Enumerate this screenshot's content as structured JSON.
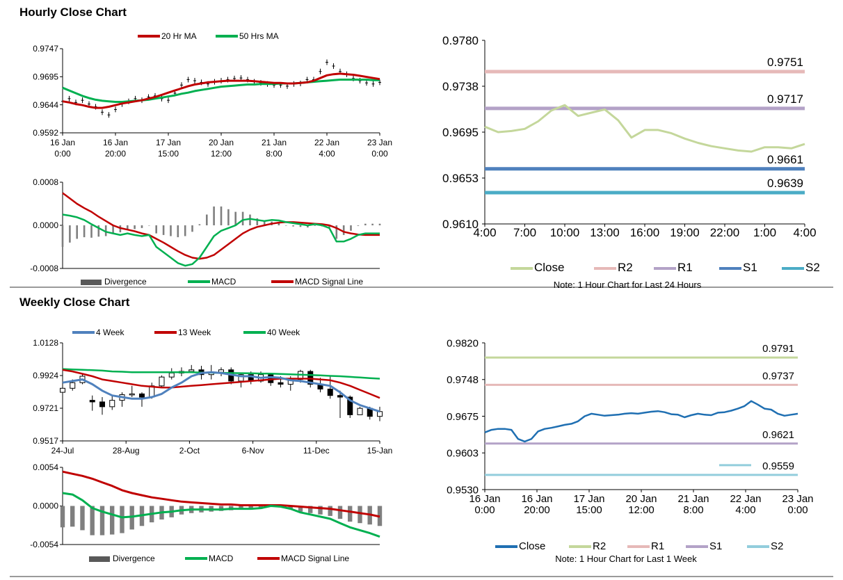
{
  "sections": {
    "hourly_title": "Hourly Close Chart",
    "weekly_title": "Weekly Close Chart"
  },
  "chart_data": [
    {
      "id": "hourly_price",
      "type": "line",
      "legend": [
        "20 Hr MA",
        "50 Hrs MA"
      ],
      "colors": {
        "ma20": "#c00000",
        "ma50": "#00b050",
        "price": "#000000"
      },
      "ylim": [
        0.9592,
        0.9747
      ],
      "yticks": [
        "0.9747",
        "0.9695",
        "0.9644",
        "0.9592"
      ],
      "xticks": [
        [
          "16 Jan",
          "0:00"
        ],
        [
          "16 Jan",
          "20:00"
        ],
        [
          "17 Jan",
          "15:00"
        ],
        [
          "20 Jan",
          "12:00"
        ],
        [
          "21 Jan",
          "8:00"
        ],
        [
          "22 Jan",
          "4:00"
        ],
        [
          "23 Jan",
          "0:00"
        ]
      ],
      "price": [
        0.965,
        0.9655,
        0.9648,
        0.9652,
        0.9645,
        0.964,
        0.963,
        0.9625,
        0.9635,
        0.9645,
        0.965,
        0.9655,
        0.9652,
        0.9658,
        0.966,
        0.9655,
        0.9652,
        0.9665,
        0.968,
        0.969,
        0.9688,
        0.9685,
        0.9682,
        0.9686,
        0.9688,
        0.969,
        0.9692,
        0.9693,
        0.969,
        0.9686,
        0.9684,
        0.9682,
        0.968,
        0.968,
        0.9678,
        0.9682,
        0.9683,
        0.969,
        0.969,
        0.9705,
        0.9722,
        0.9715,
        0.9705,
        0.97,
        0.9692,
        0.9688,
        0.9684,
        0.9682,
        0.9685
      ],
      "ma20": [
        0.965,
        0.9648,
        0.9645,
        0.9643,
        0.964,
        0.9638,
        0.9638,
        0.964,
        0.9643,
        0.9646,
        0.9648,
        0.965,
        0.9652,
        0.9655,
        0.9658,
        0.9662,
        0.9666,
        0.967,
        0.9674,
        0.9678,
        0.9681,
        0.9683,
        0.9685,
        0.9686,
        0.9687,
        0.9688,
        0.9688,
        0.9688,
        0.9688,
        0.9687,
        0.9686,
        0.9685,
        0.9684,
        0.9684,
        0.9683,
        0.9683,
        0.9684,
        0.9685,
        0.9688,
        0.9693,
        0.9698,
        0.97,
        0.9701,
        0.97,
        0.9699,
        0.9697,
        0.9695,
        0.9693,
        0.9691
      ],
      "ma50": [
        0.9675,
        0.967,
        0.9665,
        0.966,
        0.9656,
        0.9653,
        0.9651,
        0.965,
        0.9649,
        0.9649,
        0.965,
        0.9651,
        0.9652,
        0.9653,
        0.9655,
        0.9657,
        0.9659,
        0.9661,
        0.9664,
        0.9666,
        0.9669,
        0.9671,
        0.9673,
        0.9675,
        0.9677,
        0.9678,
        0.9679,
        0.968,
        0.9681,
        0.9681,
        0.9682,
        0.9682,
        0.9682,
        0.9683,
        0.9683,
        0.9683,
        0.9684,
        0.9685,
        0.9686,
        0.9687,
        0.9688,
        0.9689,
        0.969,
        0.969,
        0.969,
        0.969,
        0.969,
        0.9689,
        0.9689
      ]
    },
    {
      "id": "hourly_macd",
      "type": "line",
      "legend": [
        "Divergence",
        "MACD",
        "MACD Signal Line"
      ],
      "colors": {
        "div": "#595959",
        "macd": "#00b050",
        "signal": "#c00000"
      },
      "ylim": [
        -0.0008,
        0.0008
      ],
      "yticks": [
        "0.0008",
        "0.0000",
        "-0.0008"
      ],
      "macd": [
        0.0002,
        0.00018,
        0.00015,
        0.0001,
        2e-05,
        -5e-05,
        -0.00012,
        -0.00015,
        -0.00018,
        -0.00015,
        -0.00018,
        -0.0002,
        -0.00018,
        -0.0004,
        -0.0005,
        -0.0006,
        -0.0007,
        -0.00075,
        -0.00072,
        -0.0006,
        -0.0004,
        -0.0002,
        -0.0001,
        -5e-05,
        0.0,
        0.0001,
        0.00012,
        0.0001,
        8e-05,
        0.0001,
        9e-05,
        6e-05,
        4e-05,
        2e-05,
        0.0,
        2e-05,
        0.0,
        -5e-05,
        -0.0003,
        -0.0003,
        -0.00025,
        -0.00018,
        -0.00015,
        -0.00015,
        -0.00015
      ],
      "signal": [
        0.0006,
        0.0005,
        0.0004,
        0.00032,
        0.00025,
        0.00016,
        8e-05,
        0.0,
        -5e-05,
        -8e-05,
        -0.00011,
        -0.00015,
        -0.00018,
        -0.00025,
        -0.00032,
        -0.0004,
        -0.00048,
        -0.00055,
        -0.0006,
        -0.00062,
        -0.0006,
        -0.00055,
        -0.00045,
        -0.00035,
        -0.00025,
        -0.00015,
        -8e-05,
        -3e-05,
        0.0,
        3e-05,
        5e-05,
        6e-05,
        6e-05,
        5e-05,
        4e-05,
        3e-05,
        2e-05,
        0.0,
        -5e-05,
        -0.00012,
        -0.00015,
        -0.00017,
        -0.00018,
        -0.00018,
        -0.00018
      ],
      "div": [
        -0.0004,
        -0.00032,
        -0.00025,
        -0.00022,
        -0.00023,
        -0.00021,
        -0.0002,
        -0.00015,
        -0.00013,
        -7e-05,
        -7e-05,
        -5e-05,
        0.0,
        -0.00015,
        -0.00018,
        -0.0002,
        -0.00022,
        -0.0002,
        -0.00012,
        2e-05,
        0.0002,
        0.00035,
        0.00035,
        0.0003,
        0.00025,
        0.00025,
        0.0002,
        0.00013,
        8e-05,
        7e-05,
        4e-05,
        0.0,
        -2e-05,
        -3e-05,
        -4e-05,
        -1e-05,
        -2e-05,
        -5e-05,
        -0.00025,
        -0.00018,
        -0.0001,
        -1e-05,
        3e-05,
        3e-05,
        3e-05
      ]
    },
    {
      "id": "hourly_levels",
      "type": "line",
      "legend": [
        "Close",
        "R2",
        "R1",
        "S1",
        "S2"
      ],
      "colors": {
        "close": "#c4d79b",
        "r2": "#e6b9b8",
        "r1": "#b3a2c7",
        "s1": "#4f81bd",
        "s2": "#4bacc6"
      },
      "note": "Note: 1 Hour Chart for Last 24 Hours",
      "ylim": [
        0.961,
        0.978
      ],
      "yticks": [
        "0.9780",
        "0.9738",
        "0.9695",
        "0.9653",
        "0.9610"
      ],
      "xticks": [
        "4:00",
        "7:00",
        "10:00",
        "13:00",
        "16:00",
        "19:00",
        "22:00",
        "1:00",
        "4:00"
      ],
      "close": [
        0.97,
        0.9695,
        0.9696,
        0.9698,
        0.9705,
        0.9715,
        0.972,
        0.971,
        0.9713,
        0.9716,
        0.9706,
        0.969,
        0.9697,
        0.9697,
        0.9694,
        0.9689,
        0.9685,
        0.9682,
        0.968,
        0.9678,
        0.9677,
        0.9681,
        0.9681,
        0.968,
        0.9684
      ],
      "levels": {
        "r2": 0.9751,
        "r1": 0.9717,
        "s1": 0.9661,
        "s2": 0.9639
      },
      "level_labels": {
        "r2": "0.9751",
        "r1": "0.9717",
        "s1": "0.9661",
        "s2": "0.9639"
      }
    },
    {
      "id": "weekly_price",
      "type": "line",
      "legend": [
        "4 Week",
        "13 Week",
        "40 Week"
      ],
      "colors": {
        "w4": "#4f81bd",
        "w13": "#c00000",
        "w40": "#00b050",
        "candle": "#000000"
      },
      "ylim": [
        0.9517,
        1.0128
      ],
      "yticks": [
        "1.0128",
        "0.9924",
        "0.9721",
        "0.9517"
      ],
      "xticks": [
        "24-Jul",
        "28-Aug",
        "2-Oct",
        "6-Nov",
        "11-Dec",
        "15-Jan"
      ],
      "candles": [
        [
          0.982,
          0.9845,
          0.9855,
          0.979
        ],
        [
          0.9845,
          0.988,
          0.99,
          0.983
        ],
        [
          0.988,
          0.992,
          0.9935,
          0.987
        ],
        [
          0.977,
          0.976,
          0.98,
          0.9705
        ],
        [
          0.976,
          0.973,
          0.979,
          0.968
        ],
        [
          0.973,
          0.977,
          0.98,
          0.971
        ],
        [
          0.977,
          0.9805,
          0.982,
          0.973
        ],
        [
          0.9805,
          0.981,
          0.986,
          0.979
        ],
        [
          0.981,
          0.979,
          0.982,
          0.973
        ],
        [
          0.979,
          0.986,
          0.988,
          0.978
        ],
        [
          0.986,
          0.9915,
          0.9925,
          0.985
        ],
        [
          0.9915,
          0.994,
          0.997,
          0.99
        ],
        [
          0.994,
          0.995,
          0.9975,
          0.992
        ],
        [
          0.995,
          0.996,
          0.999,
          0.994
        ],
        [
          0.996,
          0.993,
          0.9985,
          0.99
        ],
        [
          0.993,
          0.9945,
          0.999,
          0.99
        ],
        [
          0.9945,
          0.996,
          0.9975,
          0.992
        ],
        [
          0.996,
          0.989,
          0.9975,
          0.987
        ],
        [
          0.989,
          0.993,
          0.994,
          0.985
        ],
        [
          0.993,
          0.989,
          0.995,
          0.987
        ],
        [
          0.989,
          0.993,
          0.995,
          0.988
        ],
        [
          0.993,
          0.988,
          0.994,
          0.986
        ],
        [
          0.988,
          0.987,
          0.992,
          0.985
        ],
        [
          0.987,
          0.99,
          0.992,
          0.983
        ],
        [
          0.99,
          0.995,
          0.996,
          0.988
        ],
        [
          0.995,
          0.987,
          0.996,
          0.985
        ],
        [
          0.987,
          0.984,
          0.991,
          0.982
        ],
        [
          0.984,
          0.98,
          0.992,
          0.978
        ],
        [
          0.98,
          0.979,
          0.983,
          0.966
        ],
        [
          0.979,
          0.968,
          0.98,
          0.966
        ],
        [
          0.968,
          0.972,
          0.973,
          0.969
        ],
        [
          0.972,
          0.967,
          0.973,
          0.965
        ],
        [
          0.967,
          0.97,
          0.973,
          0.964
        ]
      ],
      "w4": [
        0.988,
        0.989,
        0.99,
        0.987,
        0.983,
        0.98,
        0.979,
        0.978,
        0.978,
        0.979,
        0.981,
        0.985,
        0.988,
        0.992,
        0.994,
        0.9945,
        0.994,
        0.993,
        0.992,
        0.992,
        0.991,
        0.9915,
        0.991,
        0.9895,
        0.989,
        0.988,
        0.987,
        0.986,
        0.982,
        0.977,
        0.974,
        0.972,
        0.97
      ],
      "w13": [
        0.996,
        0.995,
        0.9935,
        0.992,
        0.99,
        0.989,
        0.988,
        0.987,
        0.986,
        0.9855,
        0.985,
        0.985,
        0.9855,
        0.986,
        0.9865,
        0.987,
        0.9875,
        0.988,
        0.9885,
        0.989,
        0.9895,
        0.99,
        0.9905,
        0.9905,
        0.9905,
        0.9905,
        0.99,
        0.9895,
        0.988,
        0.986,
        0.9835,
        0.981,
        0.9785
      ],
      "w40": [
        0.9965,
        0.9962,
        0.996,
        0.9958,
        0.9955,
        0.995,
        0.9948,
        0.9945,
        0.9945,
        0.9945,
        0.9945,
        0.9945,
        0.9945,
        0.9945,
        0.9943,
        0.9942,
        0.9941,
        0.994,
        0.9939,
        0.9938,
        0.9937,
        0.9936,
        0.9934,
        0.9932,
        0.993,
        0.9928,
        0.9925,
        0.9922,
        0.992,
        0.9916,
        0.9912,
        0.9908,
        0.9905
      ]
    },
    {
      "id": "weekly_macd",
      "type": "line",
      "legend": [
        "Divergence",
        "MACD",
        "MACD Signal Line"
      ],
      "colors": {
        "div": "#595959",
        "macd": "#00b050",
        "signal": "#c00000"
      },
      "ylim": [
        -0.0054,
        0.0054
      ],
      "yticks": [
        "0.0054",
        "0.0000",
        "-0.0054"
      ],
      "macd": [
        0.0018,
        0.0016,
        0.0008,
        -0.0003,
        -0.0008,
        -0.0012,
        -0.0016,
        -0.0015,
        -0.0013,
        -0.0011,
        -0.0009,
        -0.0008,
        -0.0006,
        -0.0005,
        -0.0005,
        -0.0005,
        -0.0005,
        -0.0004,
        -0.0004,
        -0.0004,
        -0.0003,
        0.0,
        -0.0001,
        -0.0004,
        -0.0009,
        -0.0012,
        -0.0015,
        -0.0018,
        -0.0024,
        -0.003,
        -0.0034,
        -0.0038,
        -0.0043
      ],
      "signal": [
        0.0048,
        0.0045,
        0.0042,
        0.0038,
        0.0033,
        0.0028,
        0.0022,
        0.0018,
        0.0015,
        0.0012,
        0.001,
        0.0008,
        0.0006,
        0.0005,
        0.0004,
        0.0003,
        0.0002,
        0.0002,
        0.0001,
        0.0001,
        0.0001,
        0.0001,
        0.0001,
        0.0,
        -0.0001,
        -0.0002,
        -0.0003,
        -0.0004,
        -0.0006,
        -0.0008,
        -0.001,
        -0.0012,
        -0.0015
      ],
      "div": [
        -0.003,
        -0.0029,
        -0.0034,
        -0.0041,
        -0.0041,
        -0.004,
        -0.0038,
        -0.0033,
        -0.0028,
        -0.0023,
        -0.0019,
        -0.0016,
        -0.0012,
        -0.001,
        -0.0009,
        -0.0008,
        -0.0007,
        -0.0006,
        -0.0005,
        -0.0005,
        -0.0004,
        -0.0001,
        -0.0002,
        -0.0004,
        -0.0008,
        -0.001,
        -0.0012,
        -0.0014,
        -0.0018,
        -0.0022,
        -0.0024,
        -0.0026,
        -0.0028
      ]
    },
    {
      "id": "weekly_levels",
      "type": "line",
      "legend": [
        "Close",
        "R2",
        "R1",
        "S1",
        "S2"
      ],
      "colors": {
        "close": "#1f6fb2",
        "r2": "#c4d79b",
        "r1": "#e6b9b8",
        "s1": "#b3a2c7",
        "s2": "#92cddc"
      },
      "note": "Note: 1 Hour Chart for Last 1 Week",
      "ylim": [
        0.953,
        0.982
      ],
      "yticks": [
        "0.9820",
        "0.9748",
        "0.9675",
        "0.9603",
        "0.9530"
      ],
      "xticks": [
        [
          "16 Jan",
          "0:00"
        ],
        [
          "16 Jan",
          "20:00"
        ],
        [
          "17 Jan",
          "15:00"
        ],
        [
          "20 Jan",
          "12:00"
        ],
        [
          "21 Jan",
          "8:00"
        ],
        [
          "22 Jan",
          "4:00"
        ],
        [
          "23 Jan",
          "0:00"
        ]
      ],
      "close": [
        0.9643,
        0.9648,
        0.965,
        0.965,
        0.9648,
        0.963,
        0.9625,
        0.963,
        0.9645,
        0.965,
        0.9652,
        0.9655,
        0.9658,
        0.966,
        0.9665,
        0.9675,
        0.968,
        0.9678,
        0.9676,
        0.9677,
        0.9678,
        0.968,
        0.9681,
        0.968,
        0.9682,
        0.9684,
        0.9685,
        0.9683,
        0.9679,
        0.9678,
        0.9673,
        0.9677,
        0.968,
        0.9678,
        0.9677,
        0.9682,
        0.9683,
        0.9686,
        0.969,
        0.9695,
        0.9705,
        0.9698,
        0.969,
        0.9688,
        0.968,
        0.9676,
        0.9678,
        0.968
      ],
      "levels": {
        "r2": 0.9791,
        "r1": 0.9737,
        "s1": 0.9621,
        "s2": 0.9559
      },
      "level_labels": {
        "r2": "0.9791",
        "r1": "0.9737",
        "s1": "0.9621",
        "s2": "0.9559"
      }
    }
  ]
}
